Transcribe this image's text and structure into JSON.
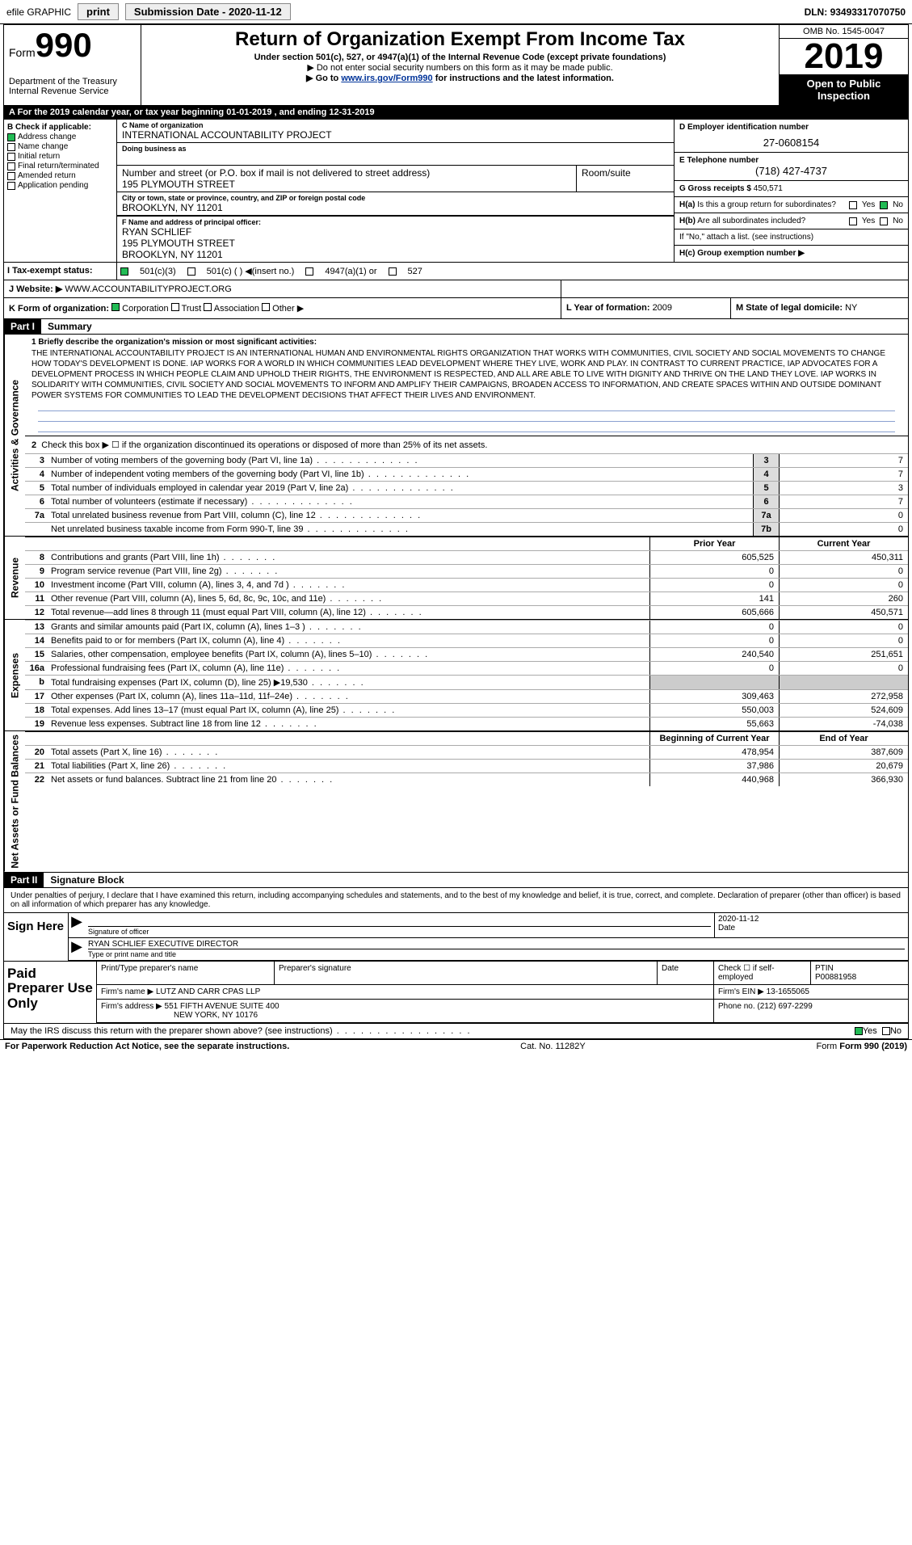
{
  "topbar": {
    "efile": "efile GRAPHIC",
    "print": "print",
    "subdate_lbl": "Submission Date - ",
    "subdate": "2020-11-12",
    "dln_lbl": "DLN: ",
    "dln": "93493317070750"
  },
  "header": {
    "form_word": "Form",
    "form_num": "990",
    "dept1": "Department of the Treasury",
    "dept2": "Internal Revenue Service",
    "title": "Return of Organization Exempt From Income Tax",
    "sub1": "Under section 501(c), 527, or 4947(a)(1) of the Internal Revenue Code (except private foundations)",
    "sub2": "▶ Do not enter social security numbers on this form as it may be made public.",
    "sub3_pre": "▶ Go to ",
    "sub3_link": "www.irs.gov/Form990",
    "sub3_post": " for instructions and the latest information.",
    "omb": "OMB No. 1545-0047",
    "year": "2019",
    "open1": "Open to Public",
    "open2": "Inspection"
  },
  "period": "A For the 2019 calendar year, or tax year beginning 01-01-2019    , and ending 12-31-2019",
  "checkB": {
    "title": "B Check if applicable:",
    "addr": "Address change",
    "name": "Name change",
    "init": "Initial return",
    "final": "Final return/terminated",
    "amend": "Amended return",
    "app": "Application pending"
  },
  "entity": {
    "c_lbl": "C Name of organization",
    "name": "INTERNATIONAL ACCOUNTABILITY PROJECT",
    "dba_lbl": "Doing business as",
    "dba": "",
    "addr_lbl": "Number and street (or P.O. box if mail is not delivered to street address)",
    "room_lbl": "Room/suite",
    "addr": "195 PLYMOUTH STREET",
    "city_lbl": "City or town, state or province, country, and ZIP or foreign postal code",
    "city": "BROOKLYN, NY  11201",
    "f_lbl": "F  Name and address of principal officer:",
    "f_name": "RYAN SCHLIEF",
    "f_addr1": "195 PLYMOUTH STREET",
    "f_addr2": "BROOKLYN, NY  11201"
  },
  "right": {
    "d_lbl": "D Employer identification number",
    "d_val": "27-0608154",
    "e_lbl": "E Telephone number",
    "e_val": "(718) 427-4737",
    "g_lbl": "G Gross receipts $ ",
    "g_val": "450,571",
    "ha_lbl": "H(a)  Is this a group return for subordinates?",
    "hb_lbl": "H(b)  Are all subordinates included?",
    "hb_note": "If \"No,\" attach a list. (see instructions)",
    "hc_lbl": "H(c)  Group exemption number ▶",
    "yes": "Yes",
    "no": "No"
  },
  "status": {
    "lbl": "I  Tax-exempt status:",
    "o1": "501(c)(3)",
    "o2": "501(c) (   ) ◀(insert no.)",
    "o3": "4947(a)(1) or",
    "o4": "527"
  },
  "website": {
    "lbl": "J  Website: ▶",
    "val": "WWW.ACCOUNTABILITYPROJECT.ORG"
  },
  "kform": {
    "lbl": "K Form of organization:",
    "corp": "Corporation",
    "trust": "Trust",
    "assoc": "Association",
    "other": "Other ▶",
    "l_lbl": "L Year of formation: ",
    "l_val": "2009",
    "m_lbl": "M State of legal domicile: ",
    "m_val": "NY"
  },
  "part1": {
    "hdr": "Part I",
    "title": "Summary",
    "side_ag": "Activities & Governance",
    "side_rev": "Revenue",
    "side_exp": "Expenses",
    "side_na": "Net Assets or Fund Balances",
    "l1_lbl": "1  Briefly describe the organization's mission or most significant activities:",
    "l1_txt": "THE INTERNATIONAL ACCOUNTABILITY PROJECT IS AN INTERNATIONAL HUMAN AND ENVIRONMENTAL RIGHTS ORGANIZATION THAT WORKS WITH COMMUNITIES, CIVIL SOCIETY AND SOCIAL MOVEMENTS TO CHANGE HOW TODAY'S DEVELOPMENT IS DONE. IAP WORKS FOR A WORLD IN WHICH COMMUNITIES LEAD DEVELOPMENT WHERE THEY LIVE, WORK AND PLAY. IN CONTRAST TO CURRENT PRACTICE, IAP ADVOCATES FOR A DEVELOPMENT PROCESS IN WHICH PEOPLE CLAIM AND UPHOLD THEIR RIGHTS, THE ENVIRONMENT IS RESPECTED, AND ALL ARE ABLE TO LIVE WITH DIGNITY AND THRIVE ON THE LAND THEY LOVE. IAP WORKS IN SOLIDARITY WITH COMMUNITIES, CIVIL SOCIETY AND SOCIAL MOVEMENTS TO INFORM AND AMPLIFY THEIR CAMPAIGNS, BROADEN ACCESS TO INFORMATION, AND CREATE SPACES WITHIN AND OUTSIDE DOMINANT POWER SYSTEMS FOR COMMUNITIES TO LEAD THE DEVELOPMENT DECISIONS THAT AFFECT THEIR LIVES AND ENVIRONMENT.",
    "l2": "Check this box ▶ ☐  if the organization discontinued its operations or disposed of more than 25% of its net assets.",
    "rows_ag": [
      {
        "n": "3",
        "d": "Number of voting members of the governing body (Part VI, line 1a)",
        "b": "3",
        "v": "7"
      },
      {
        "n": "4",
        "d": "Number of independent voting members of the governing body (Part VI, line 1b)",
        "b": "4",
        "v": "7"
      },
      {
        "n": "5",
        "d": "Total number of individuals employed in calendar year 2019 (Part V, line 2a)",
        "b": "5",
        "v": "3"
      },
      {
        "n": "6",
        "d": "Total number of volunteers (estimate if necessary)",
        "b": "6",
        "v": "7"
      },
      {
        "n": "7a",
        "d": "Total unrelated business revenue from Part VIII, column (C), line 12",
        "b": "7a",
        "v": "0"
      },
      {
        "n": "",
        "d": "Net unrelated business taxable income from Form 990-T, line 39",
        "b": "7b",
        "v": "0"
      }
    ],
    "col_py": "Prior Year",
    "col_cy": "Current Year",
    "rows_rev": [
      {
        "n": "8",
        "d": "Contributions and grants (Part VIII, line 1h)",
        "c1": "605,525",
        "c2": "450,311"
      },
      {
        "n": "9",
        "d": "Program service revenue (Part VIII, line 2g)",
        "c1": "0",
        "c2": "0"
      },
      {
        "n": "10",
        "d": "Investment income (Part VIII, column (A), lines 3, 4, and 7d )",
        "c1": "0",
        "c2": "0"
      },
      {
        "n": "11",
        "d": "Other revenue (Part VIII, column (A), lines 5, 6d, 8c, 9c, 10c, and 11e)",
        "c1": "141",
        "c2": "260"
      },
      {
        "n": "12",
        "d": "Total revenue—add lines 8 through 11 (must equal Part VIII, column (A), line 12)",
        "c1": "605,666",
        "c2": "450,571"
      }
    ],
    "rows_exp": [
      {
        "n": "13",
        "d": "Grants and similar amounts paid (Part IX, column (A), lines 1–3 )",
        "c1": "0",
        "c2": "0"
      },
      {
        "n": "14",
        "d": "Benefits paid to or for members (Part IX, column (A), line 4)",
        "c1": "0",
        "c2": "0"
      },
      {
        "n": "15",
        "d": "Salaries, other compensation, employee benefits (Part IX, column (A), lines 5–10)",
        "c1": "240,540",
        "c2": "251,651"
      },
      {
        "n": "16a",
        "d": "Professional fundraising fees (Part IX, column (A), line 11e)",
        "c1": "0",
        "c2": "0"
      },
      {
        "n": "b",
        "d": "Total fundraising expenses (Part IX, column (D), line 25) ▶19,530",
        "c1": "",
        "c2": "",
        "shade": true
      },
      {
        "n": "17",
        "d": "Other expenses (Part IX, column (A), lines 11a–11d, 11f–24e)",
        "c1": "309,463",
        "c2": "272,958"
      },
      {
        "n": "18",
        "d": "Total expenses. Add lines 13–17 (must equal Part IX, column (A), line 25)",
        "c1": "550,003",
        "c2": "524,609"
      },
      {
        "n": "19",
        "d": "Revenue less expenses. Subtract line 18 from line 12",
        "c1": "55,663",
        "c2": "-74,038"
      }
    ],
    "col_boy": "Beginning of Current Year",
    "col_eoy": "End of Year",
    "rows_na": [
      {
        "n": "20",
        "d": "Total assets (Part X, line 16)",
        "c1": "478,954",
        "c2": "387,609"
      },
      {
        "n": "21",
        "d": "Total liabilities (Part X, line 26)",
        "c1": "37,986",
        "c2": "20,679"
      },
      {
        "n": "22",
        "d": "Net assets or fund balances. Subtract line 21 from line 20",
        "c1": "440,968",
        "c2": "366,930"
      }
    ]
  },
  "part2": {
    "hdr": "Part II",
    "title": "Signature Block",
    "intro": "Under penalties of perjury, I declare that I have examined this return, including accompanying schedules and statements, and to the best of my knowledge and belief, it is true, correct, and complete. Declaration of preparer (other than officer) is based on all information of which preparer has any knowledge.",
    "sign_here": "Sign Here",
    "sig_of_officer": "Signature of officer",
    "sig_date": "2020-11-12",
    "date_lbl": "Date",
    "officer_name": "RYAN SCHLIEF  EXECUTIVE DIRECTOR",
    "type_name": "Type or print name and title",
    "paid": "Paid Preparer Use Only",
    "prep_name_lbl": "Print/Type preparer's name",
    "prep_sig_lbl": "Preparer's signature",
    "prep_date_lbl": "Date",
    "prep_self": "Check ☐ if self-employed",
    "ptin_lbl": "PTIN",
    "ptin": "P00881958",
    "firm_name_lbl": "Firm's name    ▶ ",
    "firm_name": "LUTZ AND CARR CPAS LLP",
    "firm_ein_lbl": "Firm's EIN ▶ ",
    "firm_ein": "13-1655065",
    "firm_addr_lbl": "Firm's address ▶ ",
    "firm_addr1": "551 FIFTH AVENUE SUITE 400",
    "firm_addr2": "NEW YORK, NY  10176",
    "phone_lbl": "Phone no. ",
    "phone": "(212) 697-2299",
    "may_irs": "May the IRS discuss this return with the preparer shown above? (see instructions)",
    "yes": "Yes",
    "no": "No"
  },
  "footer": {
    "l": "For Paperwork Reduction Act Notice, see the separate instructions.",
    "m": "Cat. No. 11282Y",
    "r": "Form 990 (2019)"
  }
}
